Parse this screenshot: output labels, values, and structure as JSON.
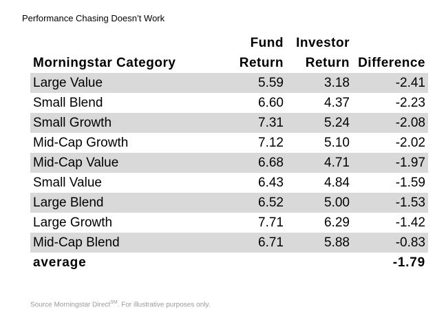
{
  "title": "Performance Chasing Doesn’t Work",
  "chart_data": {
    "type": "table",
    "title": "Performance Chasing Doesn’t Work",
    "columns": [
      {
        "line1": "",
        "line2": "Morningstar Category"
      },
      {
        "line1": "Fund",
        "line2": "Return"
      },
      {
        "line1": "Investor",
        "line2": "Return"
      },
      {
        "line1": "",
        "line2": "Difference"
      }
    ],
    "rows": [
      {
        "category": "Large Value",
        "fund_return": "5.59",
        "investor_return": "3.18",
        "difference": "-2.41"
      },
      {
        "category": "Small Blend",
        "fund_return": "6.60",
        "investor_return": "4.37",
        "difference": "-2.23"
      },
      {
        "category": "Small Growth",
        "fund_return": "7.31",
        "investor_return": "5.24",
        "difference": "-2.08"
      },
      {
        "category": "Mid-Cap Growth",
        "fund_return": "7.12",
        "investor_return": "5.10",
        "difference": "-2.02"
      },
      {
        "category": "Mid-Cap Value",
        "fund_return": "6.68",
        "investor_return": "4.71",
        "difference": "-1.97"
      },
      {
        "category": "Small Value",
        "fund_return": "6.43",
        "investor_return": "4.84",
        "difference": "-1.59"
      },
      {
        "category": "Large Blend",
        "fund_return": "6.52",
        "investor_return": "5.00",
        "difference": "-1.53"
      },
      {
        "category": "Large Growth",
        "fund_return": "7.71",
        "investor_return": "6.29",
        "difference": "-1.42"
      },
      {
        "category": "Mid-Cap Blend",
        "fund_return": "6.71",
        "investor_return": "5.88",
        "difference": "-0.83"
      }
    ],
    "average": {
      "label": "average",
      "difference": "-1.79"
    },
    "row_shading": "#d9d9d9"
  },
  "source": {
    "text": "Source Morningstar Direct",
    "superscript": "SM",
    "suffix": ". For illustrative purposes only."
  }
}
